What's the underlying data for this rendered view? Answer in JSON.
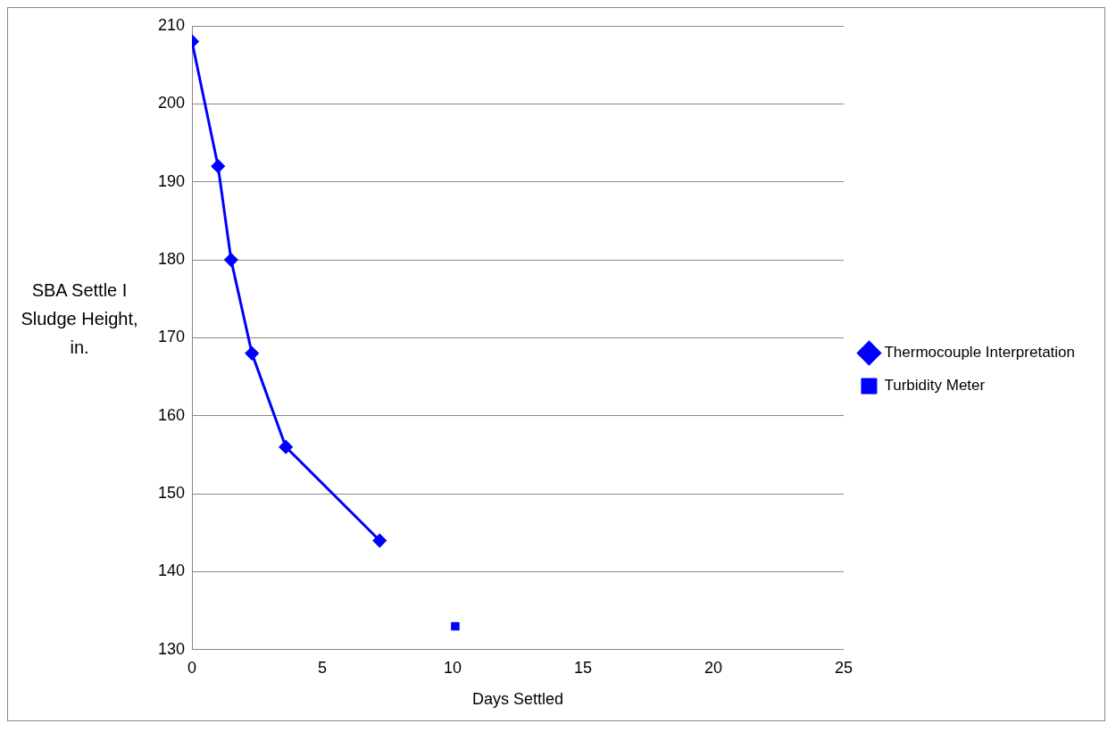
{
  "chart_data": {
    "type": "line",
    "xlabel": "Days Settled",
    "ylabel": "SBA Settle I Sludge Height, in.",
    "xlim": [
      0,
      25
    ],
    "xticks": [
      0,
      5,
      10,
      15,
      20,
      25
    ],
    "ylim": [
      130,
      210
    ],
    "yticks": [
      130,
      140,
      150,
      160,
      170,
      180,
      190,
      200,
      210
    ],
    "grid": "y",
    "legend": "right",
    "series": [
      {
        "name": "Thermocouple Interpretation",
        "type": "line",
        "color": "#0000ff",
        "marker": "diamond",
        "x": [
          0,
          1,
          1.5,
          2.3,
          3.6,
          7.2
        ],
        "values": [
          208,
          192,
          180,
          168,
          156,
          144
        ]
      },
      {
        "name": "Turbidity Meter",
        "type": "scatter",
        "color": "#0000ff",
        "marker": "square",
        "x": [
          10.1
        ],
        "values": [
          133
        ]
      }
    ]
  }
}
